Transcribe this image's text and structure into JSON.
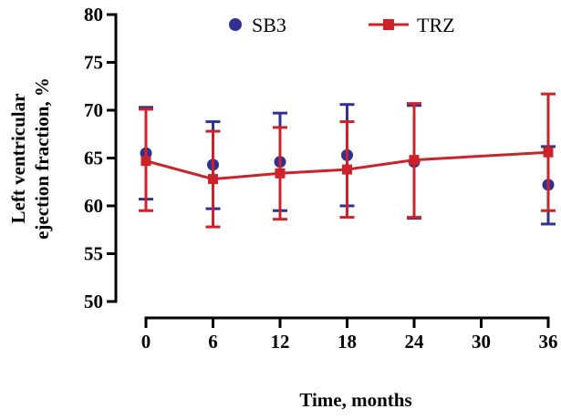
{
  "chart_data": {
    "type": "line",
    "title": "",
    "xlabel": "Time, months",
    "ylabel_lines": [
      "Left ventricular",
      "ejection fraction, %"
    ],
    "x_ticks": [
      0,
      6,
      12,
      18,
      24,
      30,
      36
    ],
    "y_ticks": [
      50,
      55,
      60,
      65,
      70,
      75,
      80
    ],
    "xlim": [
      0,
      36
    ],
    "ylim": [
      50,
      80
    ],
    "grid": false,
    "legend_position": "top",
    "series": [
      {
        "name": "SB3",
        "color": "#2e3192",
        "marker": "circle",
        "show_line": false,
        "x": [
          0,
          6,
          12,
          18,
          24,
          36
        ],
        "y": [
          65.5,
          64.3,
          64.6,
          65.3,
          64.6,
          62.2
        ],
        "error_low": [
          60.7,
          59.7,
          59.5,
          60.0,
          58.7,
          58.1
        ],
        "error_high": [
          70.3,
          68.8,
          69.7,
          70.6,
          70.5,
          66.2
        ]
      },
      {
        "name": "TRZ",
        "color": "#cc2229",
        "marker": "square",
        "show_line": true,
        "x": [
          0,
          6,
          12,
          18,
          24,
          36
        ],
        "y": [
          64.7,
          62.8,
          63.4,
          63.8,
          64.8,
          65.6
        ],
        "error_low": [
          59.5,
          57.8,
          58.6,
          58.8,
          58.8,
          59.5
        ],
        "error_high": [
          70.1,
          67.8,
          68.2,
          68.8,
          70.7,
          71.7
        ]
      }
    ]
  }
}
